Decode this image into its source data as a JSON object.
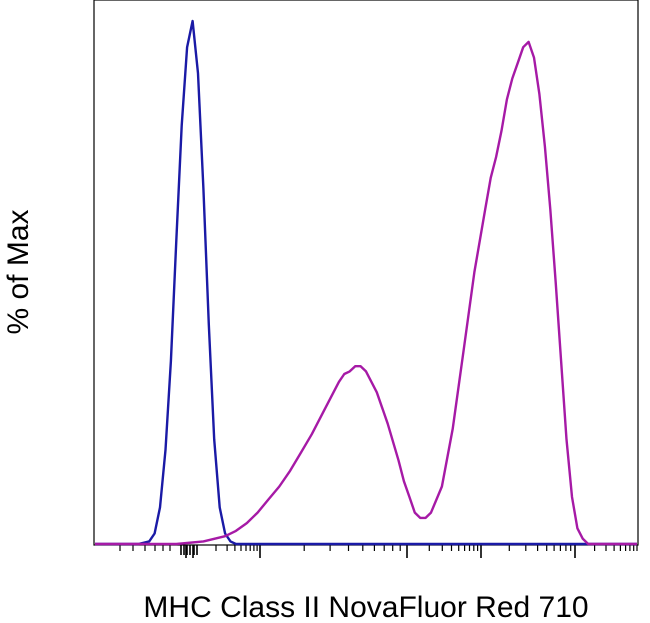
{
  "chart_data": {
    "type": "line",
    "title": "",
    "xlabel": "MHC Class II NovaFluor Red 710",
    "ylabel": "% of Max",
    "xscale": "biexponential",
    "xlim": [
      0,
      100
    ],
    "ylim": [
      0,
      100
    ],
    "x_tick_labels": false,
    "y_tick_labels": false,
    "grid": false,
    "legend": "none",
    "series": [
      {
        "color": "#1a1aa6",
        "x": [
          0,
          8,
          10,
          11,
          12,
          13,
          14,
          15,
          16,
          17,
          18,
          19,
          20,
          21,
          22,
          23,
          24,
          25,
          26,
          100
        ],
        "y": [
          0,
          0,
          0.5,
          2,
          7,
          18,
          35,
          58,
          80,
          95,
          100,
          90,
          68,
          42,
          20,
          7,
          2,
          0.5,
          0,
          0
        ]
      },
      {
        "color": "#a61aa6",
        "x": [
          0,
          15,
          20,
          24,
          26,
          28,
          30,
          32,
          34,
          36,
          38,
          40,
          42,
          44,
          45,
          46,
          47,
          48,
          49,
          50,
          52,
          54,
          56,
          57,
          58,
          59,
          60,
          61,
          62,
          64,
          66,
          68,
          70,
          72,
          73,
          74,
          75,
          76,
          77,
          78,
          79,
          80,
          81,
          82,
          83,
          84,
          85,
          86,
          87,
          88,
          89,
          90,
          91,
          92,
          100
        ],
        "y": [
          0,
          0,
          0.5,
          1.5,
          2.5,
          4,
          6,
          8.5,
          11,
          14,
          17.5,
          21,
          25,
          29,
          31,
          32.5,
          33,
          34,
          34,
          33,
          29,
          23,
          16,
          12,
          9,
          6,
          5,
          5,
          6,
          11,
          22,
          37,
          52,
          64,
          70,
          74,
          79,
          85,
          89,
          92,
          95,
          96,
          93,
          86,
          76,
          64,
          50,
          35,
          20,
          9,
          3,
          1,
          0,
          0,
          0
        ]
      }
    ]
  }
}
